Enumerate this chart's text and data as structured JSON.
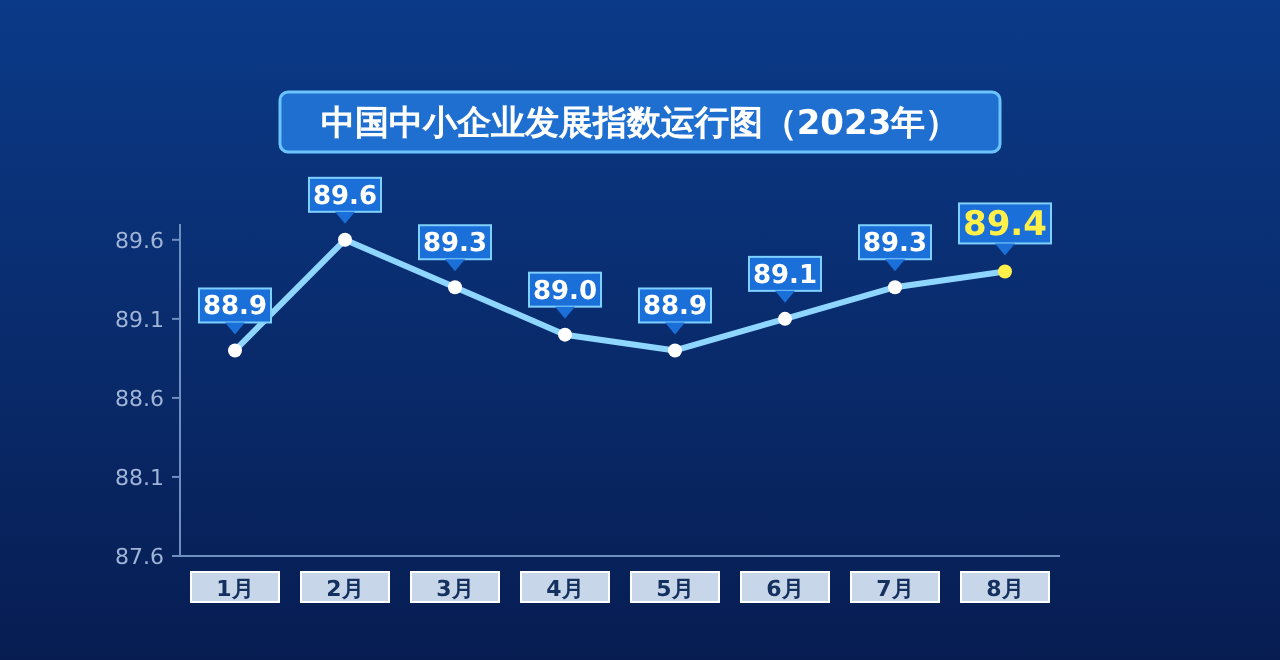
{
  "chart_data": {
    "type": "line",
    "title": "中国中小企业发展指数运行图（2023年）",
    "categories": [
      "1月",
      "2月",
      "3月",
      "4月",
      "5月",
      "6月",
      "7月",
      "8月"
    ],
    "series": [
      {
        "color": "#8fd6ff",
        "values": [
          88.9,
          89.6,
          89.3,
          89.0,
          88.9,
          89.1,
          89.3,
          89.4
        ],
        "colors": [
          "#ffffff",
          "#ffffff",
          "#ffffff",
          "#ffffff",
          "#ffffff",
          "#ffffff",
          "#ffffff",
          "#fff04a"
        ]
      }
    ],
    "ylim": [
      87.6,
      89.7
    ],
    "yticks": [
      87.6,
      88.1,
      88.6,
      89.1,
      89.6
    ],
    "value_labels": [
      "88.9",
      "89.6",
      "89.3",
      "89.0",
      "88.9",
      "89.1",
      "89.3",
      "89.4"
    ],
    "marker": "circle"
  }
}
